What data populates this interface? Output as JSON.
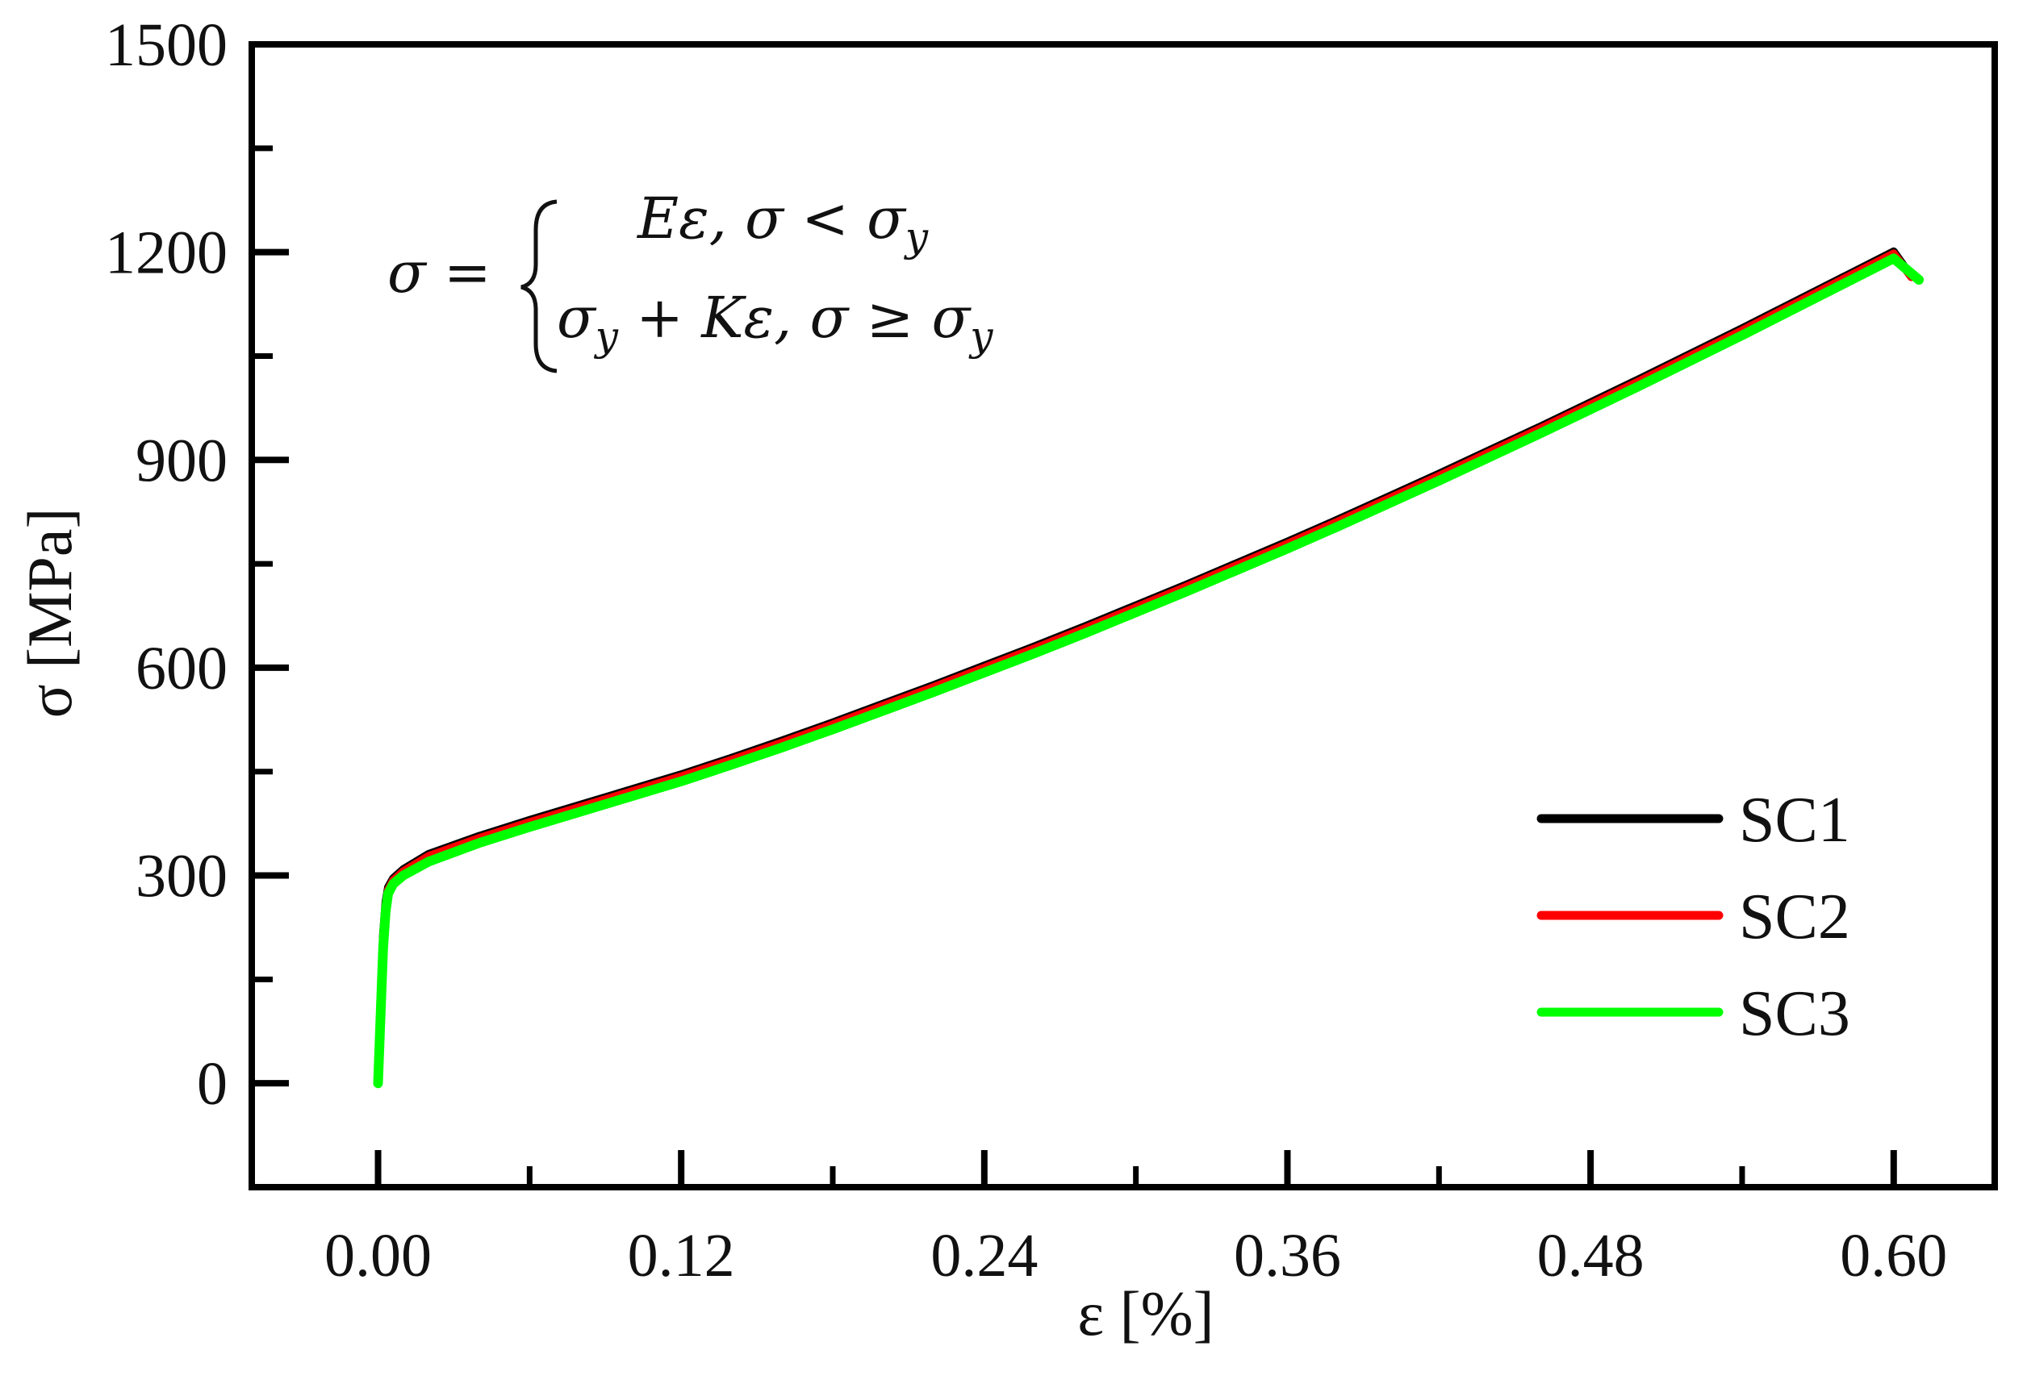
{
  "chart_data": {
    "type": "line",
    "xlabel": "ε [%]",
    "ylabel": "σ [MPa]",
    "xlim": [
      -0.05,
      0.64
    ],
    "ylim": [
      -150,
      1500
    ],
    "xticks": [
      0.0,
      0.12,
      0.24,
      0.36,
      0.48,
      0.6
    ],
    "xtick_labels": [
      "0.00",
      "0.12",
      "0.24",
      "0.36",
      "0.48",
      "0.60"
    ],
    "yticks": [
      0,
      300,
      600,
      900,
      1200,
      1500
    ],
    "ytick_labels": [
      "0",
      "300",
      "600",
      "900",
      "1200",
      "1500"
    ],
    "grid": false,
    "legend_position": "bottom-right",
    "annotation": {
      "lhs": "σ =",
      "line1": "Eε, σ < σ",
      "line1_sub": "y",
      "line2_pre": "σ",
      "line2_pre_sub": "y",
      "line2_post": " + Kε, σ ≥ σ",
      "line2_post_sub": "y"
    },
    "series": [
      {
        "name": "SC1",
        "color": "#000000",
        "x": [
          0.0,
          0.001,
          0.002,
          0.003,
          0.004,
          0.006,
          0.01,
          0.02,
          0.04,
          0.06,
          0.08,
          0.1,
          0.12,
          0.14,
          0.16,
          0.18,
          0.2,
          0.22,
          0.24,
          0.26,
          0.28,
          0.3,
          0.32,
          0.34,
          0.36,
          0.38,
          0.4,
          0.42,
          0.44,
          0.46,
          0.48,
          0.5,
          0.52,
          0.54,
          0.56,
          0.58,
          0.6,
          0.607
        ],
        "y": [
          0,
          120,
          215,
          262,
          283,
          296,
          309,
          331,
          357,
          380,
          402,
          424,
          446,
          470,
          495,
          521,
          548,
          575,
          603,
          631,
          660,
          690,
          720,
          751,
          782,
          814,
          847,
          880,
          914,
          948,
          983,
          1018,
          1054,
          1090,
          1127,
          1164,
          1201,
          1165
        ]
      },
      {
        "name": "SC2",
        "color": "#ff0000",
        "x": [
          0.0,
          0.001,
          0.002,
          0.003,
          0.004,
          0.006,
          0.01,
          0.02,
          0.04,
          0.06,
          0.08,
          0.1,
          0.12,
          0.14,
          0.16,
          0.18,
          0.2,
          0.22,
          0.24,
          0.26,
          0.28,
          0.3,
          0.32,
          0.34,
          0.36,
          0.38,
          0.4,
          0.42,
          0.44,
          0.46,
          0.48,
          0.5,
          0.52,
          0.54,
          0.56,
          0.58,
          0.6,
          0.607
        ],
        "y": [
          0,
          110,
          205,
          255,
          279,
          293,
          306,
          328,
          354,
          377,
          399,
          421,
          443,
          467,
          492,
          518,
          545,
          572,
          600,
          628,
          657,
          687,
          717,
          748,
          779,
          811,
          844,
          877,
          911,
          945,
          980,
          1015,
          1051,
          1087,
          1124,
          1161,
          1198,
          1164
        ]
      },
      {
        "name": "SC3",
        "color": "#00ff00",
        "x": [
          0.0,
          0.001,
          0.002,
          0.003,
          0.004,
          0.006,
          0.01,
          0.02,
          0.04,
          0.06,
          0.08,
          0.1,
          0.12,
          0.14,
          0.16,
          0.18,
          0.2,
          0.22,
          0.24,
          0.26,
          0.28,
          0.3,
          0.32,
          0.34,
          0.36,
          0.38,
          0.4,
          0.42,
          0.44,
          0.46,
          0.48,
          0.5,
          0.52,
          0.54,
          0.56,
          0.58,
          0.6,
          0.61
        ],
        "y": [
          0,
          100,
          195,
          248,
          274,
          288,
          300,
          320,
          347,
          370,
          392,
          414,
          436,
          460,
          485,
          511,
          538,
          565,
          593,
          621,
          650,
          680,
          710,
          741,
          772,
          804,
          837,
          870,
          904,
          938,
          973,
          1008,
          1044,
          1080,
          1117,
          1154,
          1191,
          1160
        ]
      }
    ]
  }
}
